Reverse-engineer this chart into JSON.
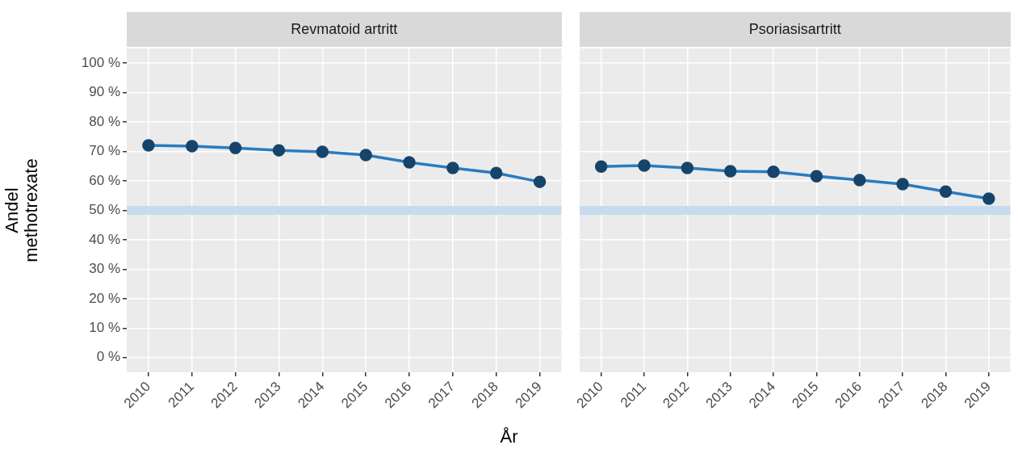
{
  "chart_data": [
    {
      "type": "line",
      "title": "Revmatoid artritt",
      "xlabel": "År",
      "ylabel": "Andel\nmethotrexate",
      "categories": [
        "2010",
        "2011",
        "2012",
        "2013",
        "2014",
        "2015",
        "2016",
        "2017",
        "2018",
        "2019"
      ],
      "series": [
        {
          "color": "#2a7bc0",
          "values": [
            72.1,
            71.8,
            71.2,
            70.4,
            69.9,
            68.8,
            66.3,
            64.4,
            62.7,
            59.7
          ]
        }
      ],
      "ylim": [
        -5,
        105
      ],
      "yticks": [
        {
          "value": 0,
          "label": "0 %"
        },
        {
          "value": 10,
          "label": "10 %"
        },
        {
          "value": 20,
          "label": "20 %"
        },
        {
          "value": 30,
          "label": "30 %"
        },
        {
          "value": 40,
          "label": "40 %"
        },
        {
          "value": 50,
          "label": "50 %"
        },
        {
          "value": 60,
          "label": "60 %"
        },
        {
          "value": 70,
          "label": "70 %"
        },
        {
          "value": 80,
          "label": "80 %"
        },
        {
          "value": 90,
          "label": "90 %"
        },
        {
          "value": 100,
          "label": "100 %"
        }
      ],
      "bands": [
        {
          "axis": "y",
          "from": 48.5,
          "to": 51.5,
          "color": "#c6dbef"
        }
      ],
      "grid": true,
      "marker": "circle",
      "legend": false
    },
    {
      "type": "line",
      "title": "Psoriasisartritt",
      "categories": [
        "2010",
        "2011",
        "2012",
        "2013",
        "2014",
        "2015",
        "2016",
        "2017",
        "2018",
        "2019"
      ],
      "series": [
        {
          "color": "#2a7bc0",
          "values": [
            64.9,
            65.2,
            64.4,
            63.3,
            63.1,
            61.6,
            60.3,
            58.9,
            56.4,
            54.0
          ]
        }
      ],
      "ylim": [
        -5,
        105
      ],
      "yticks": [
        0,
        10,
        20,
        30,
        40,
        50,
        60,
        70,
        80,
        90,
        100
      ],
      "bands": [
        {
          "axis": "y",
          "from": 48.5,
          "to": 51.5,
          "color": "#c6dbef"
        }
      ],
      "grid": true,
      "marker": "circle",
      "legend": false,
      "tick_labels": "x"
    }
  ]
}
